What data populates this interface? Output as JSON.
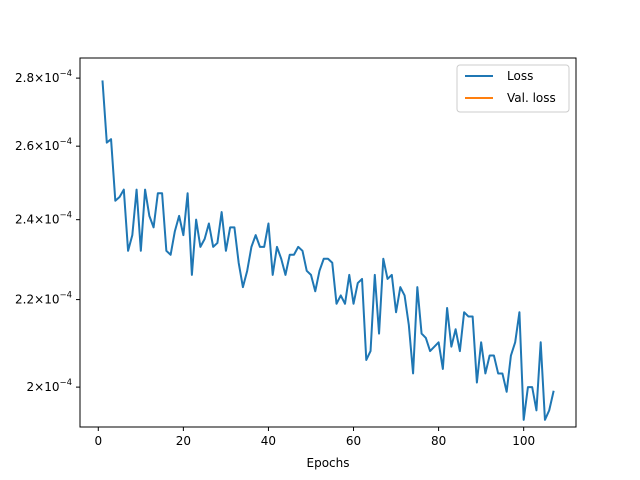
{
  "chart_data": {
    "type": "line",
    "title": "",
    "xlabel": "Epochs",
    "ylabel": "",
    "yscale": "log",
    "xlim": [
      -4.3,
      112.3
    ],
    "ylim": [
      0.0001915,
      0.0002862
    ],
    "xticks": [
      0,
      20,
      40,
      60,
      80,
      100
    ],
    "yticks": [
      {
        "value": 0.0002,
        "mantissa": "2",
        "exponent": "−4"
      },
      {
        "value": 0.00022,
        "mantissa": "2.2",
        "exponent": "−4"
      },
      {
        "value": 0.00024,
        "mantissa": "2.4",
        "exponent": "−4"
      },
      {
        "value": 0.00026,
        "mantissa": "2.6",
        "exponent": "−4"
      },
      {
        "value": 0.00028,
        "mantissa": "2.8",
        "exponent": "−4"
      }
    ],
    "grid": false,
    "legend_position": "top-right",
    "series": [
      {
        "name": "Loss",
        "color": "#1f77b4",
        "x": [
          1,
          2,
          3,
          4,
          5,
          6,
          7,
          8,
          9,
          10,
          11,
          12,
          13,
          14,
          15,
          16,
          17,
          18,
          19,
          20,
          21,
          22,
          23,
          24,
          25,
          26,
          27,
          28,
          29,
          30,
          31,
          32,
          33,
          34,
          35,
          36,
          37,
          38,
          39,
          40,
          41,
          42,
          43,
          44,
          45,
          46,
          47,
          48,
          49,
          50,
          51,
          52,
          53,
          54,
          55,
          56,
          57,
          58,
          59,
          60,
          61,
          62,
          63,
          64,
          65,
          66,
          67,
          68,
          69,
          70,
          71,
          72,
          73,
          74,
          75,
          76,
          77,
          78,
          79,
          80,
          81,
          82,
          83,
          84,
          85,
          86,
          87,
          88,
          89,
          90,
          91,
          92,
          93,
          94,
          95,
          96,
          97,
          98,
          99,
          100,
          101,
          102,
          103,
          104,
          105,
          106,
          107
        ],
        "values": [
          0.000279,
          0.000261,
          0.000262,
          0.000245,
          0.000246,
          0.000248,
          0.000232,
          0.000236,
          0.000248,
          0.000232,
          0.000248,
          0.000241,
          0.000238,
          0.000247,
          0.000247,
          0.000232,
          0.000231,
          0.000237,
          0.000241,
          0.000236,
          0.000247,
          0.000226,
          0.00024,
          0.000233,
          0.000235,
          0.000239,
          0.000233,
          0.000234,
          0.000242,
          0.000232,
          0.000238,
          0.000238,
          0.000229,
          0.000223,
          0.000227,
          0.000233,
          0.000236,
          0.000233,
          0.000233,
          0.000239,
          0.000226,
          0.000233,
          0.00023,
          0.000226,
          0.000231,
          0.000231,
          0.000233,
          0.000232,
          0.000227,
          0.000226,
          0.000222,
          0.000227,
          0.00023,
          0.00023,
          0.000229,
          0.000219,
          0.000221,
          0.000219,
          0.000226,
          0.000219,
          0.000224,
          0.000225,
          0.000206,
          0.000208,
          0.000226,
          0.000212,
          0.00023,
          0.000225,
          0.000226,
          0.000217,
          0.000223,
          0.000221,
          0.000214,
          0.000203,
          0.000223,
          0.000212,
          0.000211,
          0.000208,
          0.000209,
          0.00021,
          0.000204,
          0.000218,
          0.000209,
          0.000213,
          0.000208,
          0.000217,
          0.000216,
          0.000216,
          0.000201,
          0.00021,
          0.000203,
          0.000207,
          0.000207,
          0.000203,
          0.000203,
          0.000199,
          0.000207,
          0.00021,
          0.000217,
          0.000193,
          0.0002,
          0.0002,
          0.000195,
          0.00021,
          0.000193,
          0.000195,
          0.000199
        ]
      },
      {
        "name": "Val. loss",
        "color": "#ff7f0e",
        "x": [],
        "values": []
      }
    ]
  }
}
